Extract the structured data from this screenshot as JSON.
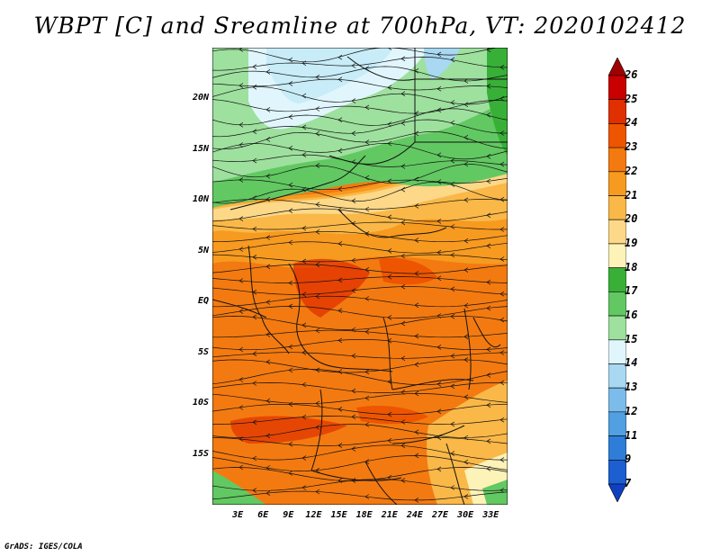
{
  "title": "WBPT [C] and Sreamline at 700hPa, VT: 2020102412",
  "footer": "GrADS: IGES/COLA",
  "map": {
    "variable": "WBPT [C]",
    "overlay": "streamlines",
    "level": "700hPa",
    "valid_time": "2020102412",
    "lat_range": [
      -20,
      25
    ],
    "lon_range": [
      0,
      35
    ],
    "lat_ticks": [
      "20N",
      "15N",
      "10N",
      "5N",
      "EQ",
      "5S",
      "10S",
      "15S"
    ],
    "lon_ticks": [
      "3E",
      "6E",
      "9E",
      "12E",
      "15E",
      "18E",
      "21E",
      "24E",
      "27E",
      "30E",
      "33E"
    ]
  },
  "colorbar": {
    "labels": [
      "26",
      "25",
      "24",
      "23",
      "22",
      "21",
      "20",
      "19",
      "18",
      "17",
      "16",
      "15",
      "14",
      "13",
      "12",
      "11",
      "9",
      "7"
    ],
    "colors": [
      "#a00000",
      "#c80000",
      "#e03000",
      "#ee5500",
      "#f37a10",
      "#f79a20",
      "#fab848",
      "#fcd888",
      "#fdf2b8",
      "#38b038",
      "#62c862",
      "#9ee09e",
      "#e0f6fc",
      "#a8d8f2",
      "#7cbcea",
      "#50a0e2",
      "#2e7ed8",
      "#1c5fd0",
      "#1040c0"
    ]
  }
}
